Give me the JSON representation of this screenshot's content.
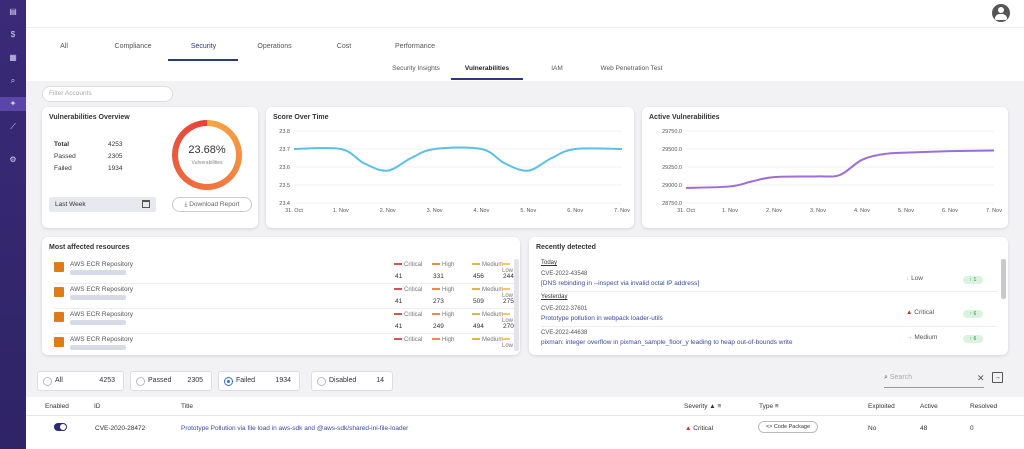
{
  "tabs": [
    "All",
    "Compliance",
    "Security",
    "Operations",
    "Cost",
    "Performance"
  ],
  "subtabs": [
    "Security Insights",
    "Vulnerabilities",
    "IAM",
    "Web Penetration Test"
  ],
  "filter_placeholder": "Filter Accounts",
  "overview": {
    "title": "Vulnerabilities Overview",
    "total_label": "Total",
    "total": "4253",
    "passed_label": "Passed",
    "passed": "2305",
    "failed_label": "Failed",
    "failed": "1934",
    "percent": "23.68%",
    "percent_caption": "Vulnerabilities",
    "period": "Last Week",
    "download_label": "Download Report"
  },
  "score_chart": {
    "chart_data": {
      "type": "line",
      "title": "Score Over Time",
      "categories": [
        "31. Oct",
        "1. Nov",
        "2. Nov",
        "3. Nov",
        "4. Nov",
        "5. Nov",
        "6. Nov",
        "7. Nov"
      ],
      "y_ticks": [
        "23.8",
        "23.7",
        "23.6",
        "23.5",
        "23.4"
      ],
      "ylim": [
        23.4,
        23.8
      ],
      "x": [
        0,
        1,
        1.5,
        2,
        2.5,
        3,
        4,
        4.5,
        5,
        5.5,
        6,
        7
      ],
      "values": [
        23.7,
        23.7,
        23.62,
        23.58,
        23.65,
        23.7,
        23.7,
        23.62,
        23.58,
        23.65,
        23.7,
        23.7
      ],
      "color": "#5bc0e8"
    }
  },
  "active_chart": {
    "chart_data": {
      "type": "line",
      "title": "Active Vulnerabilities",
      "categories": [
        "31. Oct",
        "1. Nov",
        "2. Nov",
        "3. Nov",
        "4. Nov",
        "5. Nov",
        "6. Nov",
        "7. Nov"
      ],
      "y_ticks": [
        "29750.0",
        "29500.0",
        "29250.0",
        "29000.0",
        "28750.0"
      ],
      "ylim": [
        28750,
        29750
      ],
      "x": [
        0,
        1,
        1.5,
        2,
        3,
        3.5,
        4,
        4.5,
        5,
        6,
        7
      ],
      "values": [
        28960,
        28980,
        29050,
        29110,
        29120,
        29140,
        29350,
        29430,
        29450,
        29470,
        29480
      ],
      "color": "#9b6fd6"
    }
  },
  "resources": {
    "title": "Most affected resources",
    "sev_labels": [
      "Critical",
      "High",
      "Medium",
      "Low"
    ],
    "sev_colors": [
      "#d9534f",
      "#f0884a",
      "#e0b64a",
      "#f3c76a"
    ],
    "rows": [
      {
        "name": "AWS ECR Repository",
        "values": [
          "41",
          "331",
          "456",
          "244"
        ]
      },
      {
        "name": "AWS ECR Repository",
        "values": [
          "41",
          "273",
          "509",
          "275"
        ]
      },
      {
        "name": "AWS ECR Repository",
        "values": [
          "41",
          "249",
          "494",
          "270"
        ]
      },
      {
        "name": "AWS ECR Repository",
        "values": [
          "",
          "",
          "",
          ""
        ]
      }
    ]
  },
  "recent": {
    "title": "Recently detected",
    "today": "Today",
    "yesterday": "Yesterday",
    "items": [
      {
        "id": "CVE-2022-43548",
        "title": "[DNS rebinding in --inspect via invalid octal IP address]",
        "severity": "Low",
        "count": "1"
      },
      {
        "id": "CVE-2022-37601",
        "title": "Prototype pollution in webpack loader-utils",
        "severity": "Critical",
        "count": "6"
      },
      {
        "id": "CVE-2022-44638",
        "title": "pixman: integer overflow in pixman_sample_floor_y leading to heap out-of-bounds write",
        "severity": "Medium",
        "count": "6"
      }
    ]
  },
  "filters": [
    {
      "label": "All",
      "count": "4253"
    },
    {
      "label": "Passed",
      "count": "2305"
    },
    {
      "label": "Failed",
      "count": "1934"
    },
    {
      "label": "Disabled",
      "count": "14"
    }
  ],
  "search_placeholder": "Search",
  "table": {
    "headers": [
      "Enabled",
      "ID",
      "Title",
      "Severity",
      "Type",
      "Exploited",
      "Active",
      "Resolved"
    ],
    "row": {
      "id": "CVE-2020-28472",
      "title": "Prototype Pollution via file load in aws-sdk and @aws-sdk/shared-ini-file-loader",
      "severity": "Critical",
      "type": "Code Package",
      "exploited": "No",
      "active": "48",
      "resolved": "0"
    }
  }
}
